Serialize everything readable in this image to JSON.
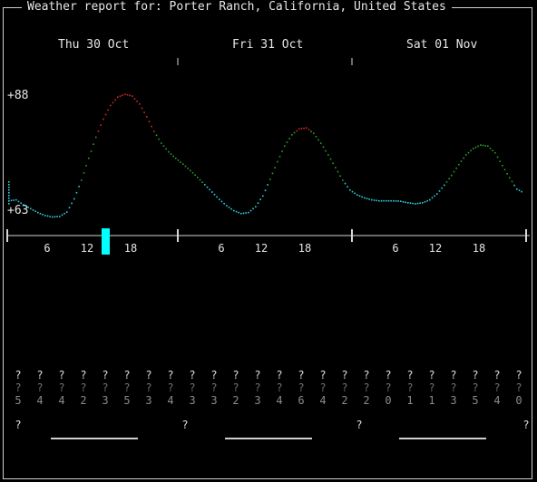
{
  "title": "Weather report for: Porter Ranch, California, United States",
  "days": [
    "Thu 30 Oct",
    "Fri 31 Oct",
    "Sat 01 Nov"
  ],
  "y_labels": {
    "max": "+88",
    "min": "+63"
  },
  "hour_ticks": [
    "6",
    "12",
    "18",
    "6",
    "12",
    "18",
    "6",
    "12",
    "18"
  ],
  "weather_icons": [
    "?",
    "?",
    "?",
    "?",
    "?",
    "?",
    "?",
    "?",
    "?",
    "?",
    "?",
    "?",
    "?",
    "?",
    "?",
    "?",
    "?",
    "?",
    "?",
    "?",
    "?",
    "?",
    "?",
    "?"
  ],
  "weather_icons2": [
    "?",
    "?",
    "?",
    "?",
    "?",
    "?",
    "?",
    "?",
    "?",
    "?",
    "?",
    "?",
    "?",
    "?",
    "?",
    "?",
    "?",
    "?",
    "?",
    "?",
    "?",
    "?",
    "?",
    "?"
  ],
  "wind_values": [
    "5",
    "4",
    "4",
    "2",
    "3",
    "5",
    "3",
    "4",
    "3",
    "3",
    "2",
    "3",
    "4",
    "6",
    "4",
    "2",
    "2",
    "0",
    "1",
    "1",
    "3",
    "5",
    "4",
    "0"
  ],
  "moon_icons": [
    "?",
    "?",
    "?",
    "?"
  ],
  "colors": {
    "cold": "#2fd0e0",
    "mild": "#2aa02a",
    "hot": "#d02a2a",
    "now_marker": "#00ffff"
  },
  "chart_data": {
    "type": "line",
    "title": "",
    "xlabel": "",
    "ylabel": "",
    "x_unit": "hour index from Thu 30 Oct 00:00",
    "ylim": [
      63,
      88
    ],
    "series": [
      {
        "values": [
          [
            0,
            65.8
          ],
          [
            1,
            66.0
          ],
          [
            2,
            65.0
          ],
          [
            3,
            64.2
          ],
          [
            4,
            63.4
          ],
          [
            5,
            62.8
          ],
          [
            6,
            62.5
          ],
          [
            7,
            62.6
          ],
          [
            8,
            63.5
          ],
          [
            9,
            66.2
          ],
          [
            10,
            70.0
          ],
          [
            11,
            74.5
          ],
          [
            12,
            78.8
          ],
          [
            13,
            82.5
          ],
          [
            14,
            85.3
          ],
          [
            15,
            87.0
          ],
          [
            16,
            87.6
          ],
          [
            17,
            87.2
          ],
          [
            18,
            85.6
          ],
          [
            19,
            83.0
          ],
          [
            20,
            80.0
          ],
          [
            21,
            77.6
          ],
          [
            22,
            75.8
          ],
          [
            23,
            74.5
          ],
          [
            24,
            73.3
          ],
          [
            25,
            72.0
          ],
          [
            26,
            70.6
          ],
          [
            27,
            69.1
          ],
          [
            28,
            67.6
          ],
          [
            29,
            66.1
          ],
          [
            30,
            64.8
          ],
          [
            31,
            63.8
          ],
          [
            32,
            63.2
          ],
          [
            33,
            63.4
          ],
          [
            34,
            64.6
          ],
          [
            35,
            66.8
          ],
          [
            36,
            70.2
          ],
          [
            37,
            73.8
          ],
          [
            38,
            77.0
          ],
          [
            39,
            79.3
          ],
          [
            40,
            80.5
          ],
          [
            41,
            80.7
          ],
          [
            42,
            79.6
          ],
          [
            43,
            77.6
          ],
          [
            44,
            75.2
          ],
          [
            45,
            72.6
          ],
          [
            46,
            70.0
          ],
          [
            47,
            68.0
          ],
          [
            48,
            67.0
          ],
          [
            49,
            66.4
          ],
          [
            50,
            66.0
          ],
          [
            51,
            65.8
          ],
          [
            52,
            65.8
          ],
          [
            53,
            65.8
          ],
          [
            54,
            65.7
          ],
          [
            55,
            65.4
          ],
          [
            56,
            65.2
          ],
          [
            57,
            65.4
          ],
          [
            58,
            66.0
          ],
          [
            59,
            67.2
          ],
          [
            60,
            69.0
          ],
          [
            61,
            71.0
          ],
          [
            62,
            73.2
          ],
          [
            63,
            75.2
          ],
          [
            64,
            76.5
          ],
          [
            65,
            77.2
          ],
          [
            66,
            77.0
          ],
          [
            67,
            75.6
          ],
          [
            68,
            73.0
          ],
          [
            69,
            70.5
          ],
          [
            70,
            68.2
          ],
          [
            71,
            67.4
          ]
        ]
      }
    ]
  }
}
